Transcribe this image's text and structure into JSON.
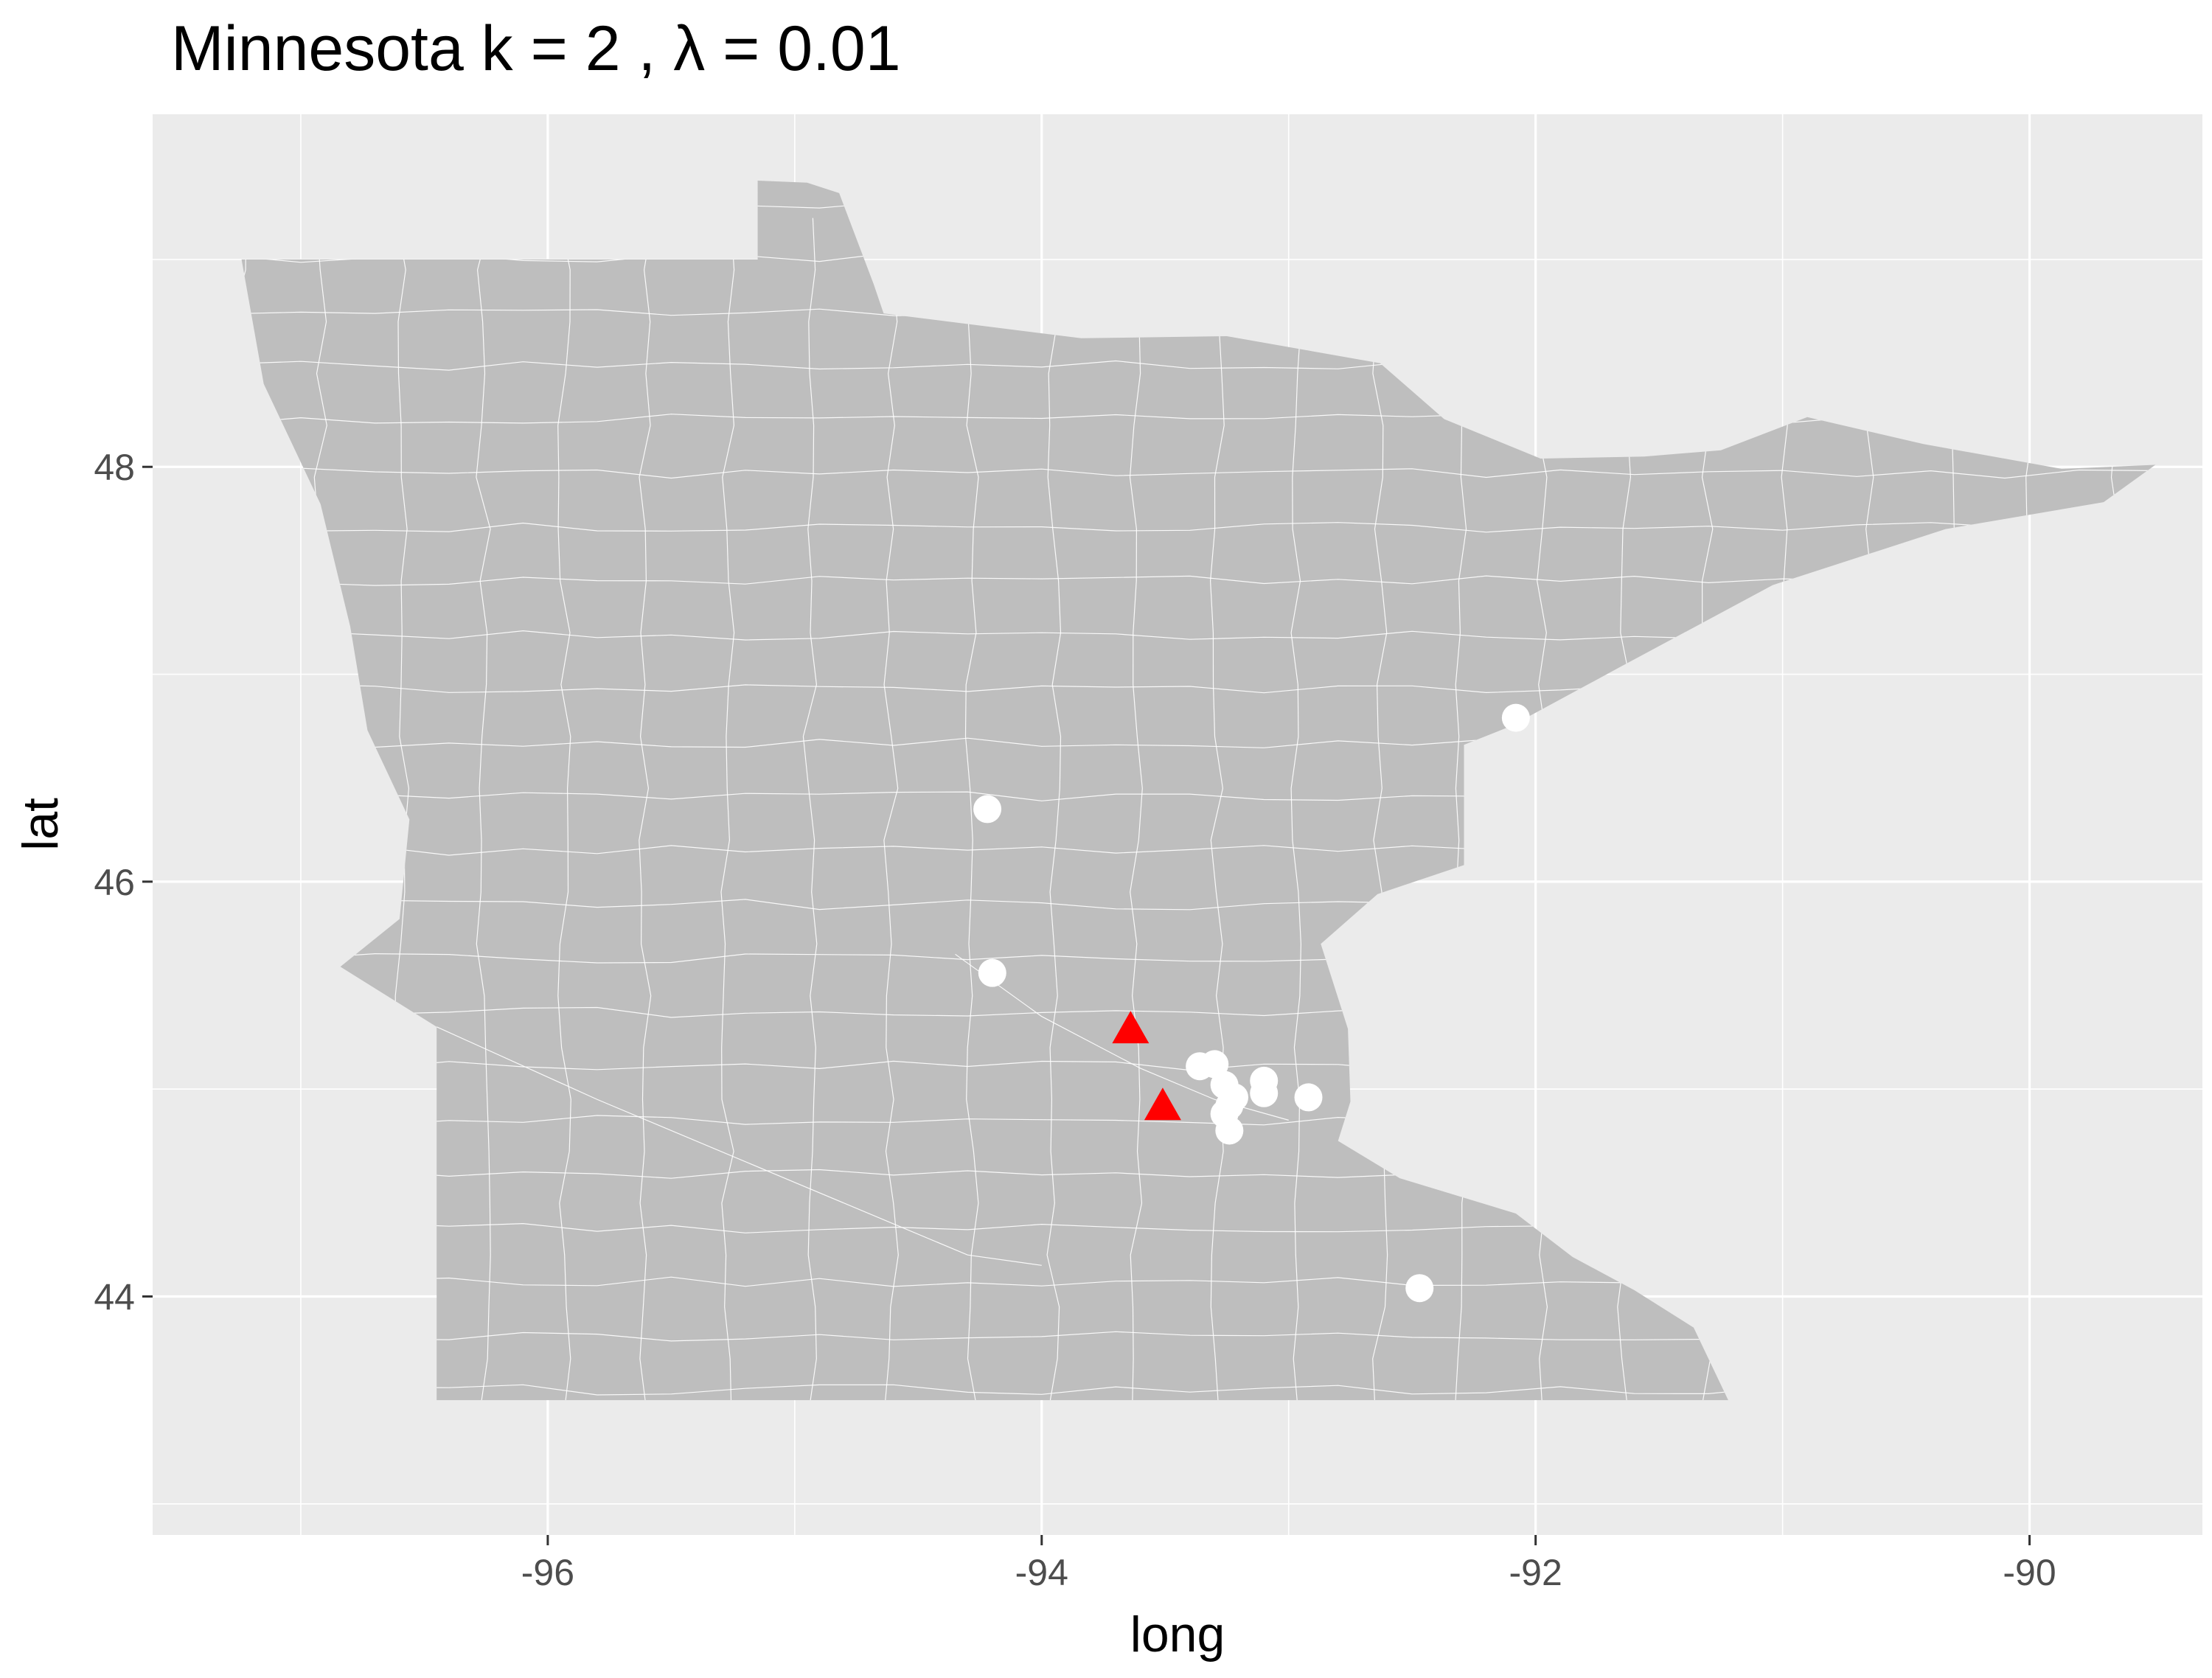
{
  "chart_data": {
    "type": "scatter",
    "title": "Minnesota  k =  2 ,  λ  =  0.01",
    "xlabel": "long",
    "ylabel": "lat",
    "xlim": [
      -97.6,
      -89.3
    ],
    "ylim": [
      42.85,
      49.7
    ],
    "x_ticks": [
      -96,
      -94,
      -92,
      -90
    ],
    "x_tick_labels": [
      "-96",
      "-94",
      "-92",
      "-90"
    ],
    "y_ticks": [
      44,
      46,
      48
    ],
    "y_tick_labels": [
      "44",
      "46",
      "48"
    ],
    "grid": true,
    "colors": {
      "panel": "#ebebeb",
      "state_fill": "#bebebe",
      "grid": "#ffffff",
      "points": "#ffffff",
      "centers": "#ff0000"
    },
    "series": [
      {
        "marker": "circle",
        "points": [
          [
            -94.22,
            46.35
          ],
          [
            -94.2,
            45.56
          ],
          [
            -92.08,
            46.79
          ],
          [
            -93.36,
            45.11
          ],
          [
            -93.3,
            45.12
          ],
          [
            -93.26,
            45.02
          ],
          [
            -93.22,
            44.96
          ],
          [
            -93.24,
            44.92
          ],
          [
            -93.26,
            44.88
          ],
          [
            -93.24,
            44.8
          ],
          [
            -93.1,
            45.04
          ],
          [
            -93.1,
            44.98
          ],
          [
            -92.92,
            44.96
          ],
          [
            -92.47,
            44.04
          ]
        ]
      },
      {
        "marker": "triangle",
        "points": [
          [
            -93.64,
            45.28
          ],
          [
            -93.51,
            44.91
          ]
        ]
      }
    ]
  }
}
